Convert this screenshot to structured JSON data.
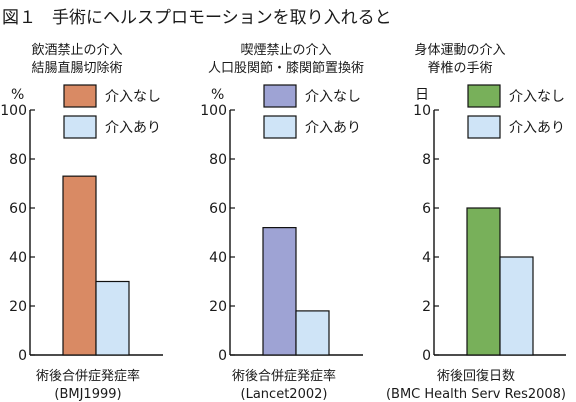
{
  "figure": {
    "label": "図１",
    "title": "手術にヘルスプロモーションを取り入れると"
  },
  "colors": {
    "frame": "#111111",
    "orange": "#d98a64",
    "purple": "#9ea3d4",
    "green": "#78b05a",
    "light_blue": "#cfe4f7"
  },
  "chart_data": [
    {
      "type": "bar",
      "title_lines": [
        "飲酒禁止の介入",
        "結腸直腸切除術"
      ],
      "unit": "%",
      "ylim": [
        0,
        100
      ],
      "yticks": [
        "0",
        "20",
        "40",
        "60",
        "80",
        "100"
      ],
      "xlabel_lines": [
        "術後合併症発症率",
        "(BMJ1999)"
      ],
      "series": [
        {
          "name": "介入なし",
          "color": "#d98a64",
          "value": 73
        },
        {
          "name": "介入あり",
          "color": "#cfe4f7",
          "value": 30
        }
      ]
    },
    {
      "type": "bar",
      "title_lines": [
        "喫煙禁止の介入",
        "人口股関節・膝関節置換術"
      ],
      "unit": "%",
      "ylim": [
        0,
        100
      ],
      "yticks": [
        "0",
        "20",
        "40",
        "60",
        "80",
        "100"
      ],
      "xlabel_lines": [
        "術後合併症発症率",
        "(Lancet2002)"
      ],
      "series": [
        {
          "name": "介入なし",
          "color": "#9ea3d4",
          "value": 52
        },
        {
          "name": "介入あり",
          "color": "#cfe4f7",
          "value": 18
        }
      ]
    },
    {
      "type": "bar",
      "title_lines": [
        "身体運動の介入",
        "脊椎の手術"
      ],
      "unit": "日",
      "ylim": [
        0,
        10
      ],
      "yticks": [
        "0",
        "2",
        "4",
        "6",
        "8",
        "10"
      ],
      "xlabel_lines": [
        "術後回復日数",
        "(BMC Health Serv Res2008)"
      ],
      "series": [
        {
          "name": "介入なし",
          "color": "#78b05a",
          "value": 6
        },
        {
          "name": "介入あり",
          "color": "#cfe4f7",
          "value": 4
        }
      ]
    }
  ]
}
